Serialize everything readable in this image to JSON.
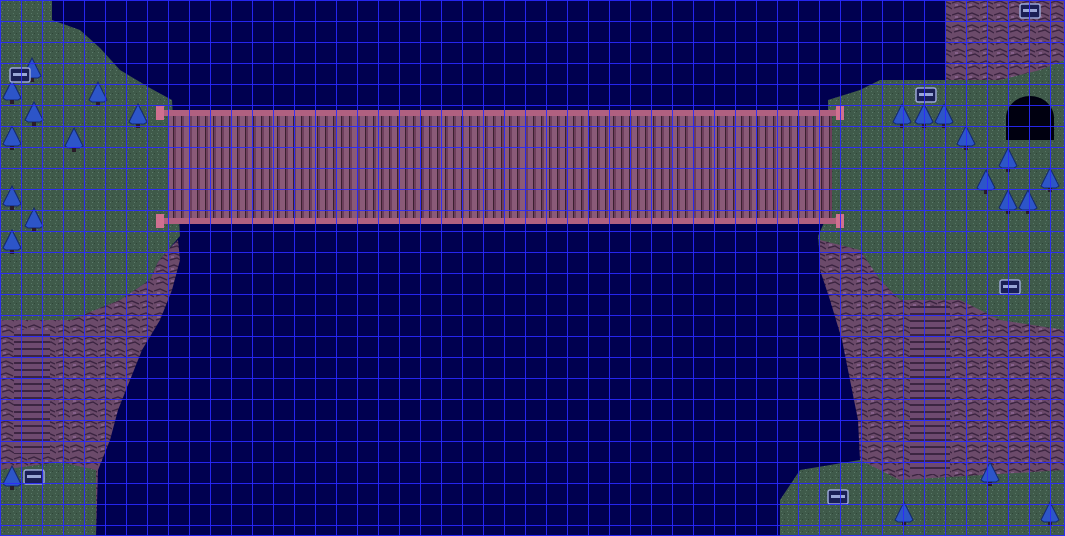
{
  "map": {
    "tile_size": 21,
    "columns": 51,
    "rows": 26,
    "grid_color": "#2a2aff",
    "water_color": "#000050",
    "grass_color": "#3f5a4a",
    "grass_light_color": "#567564",
    "cliff_color": "#6b4a6a",
    "cliff_dark_color": "#3a2340",
    "bridge_color": "#8a5a78",
    "bridge_rope_color": "#b06080",
    "tree_color": "#2d55c8",
    "chest_color": "#9aa6d6",
    "cave_color": "#000010"
  },
  "objects": {
    "trees": [
      "pine-tree",
      "pine-tree",
      "pine-tree",
      "pine-tree",
      "pine-tree",
      "pine-tree",
      "pine-tree",
      "pine-tree",
      "pine-tree",
      "pine-tree",
      "pine-tree",
      "pine-tree",
      "pine-tree",
      "pine-tree",
      "pine-tree",
      "pine-tree",
      "pine-tree",
      "pine-tree",
      "pine-tree",
      "pine-tree"
    ],
    "chests": [
      "treasure-chest",
      "treasure-chest",
      "treasure-chest",
      "treasure-chest",
      "treasure-chest",
      "treasure-chest"
    ],
    "features": [
      "rope-bridge",
      "cave-entrance",
      "stone-stairs-left",
      "stone-stairs-right"
    ]
  }
}
